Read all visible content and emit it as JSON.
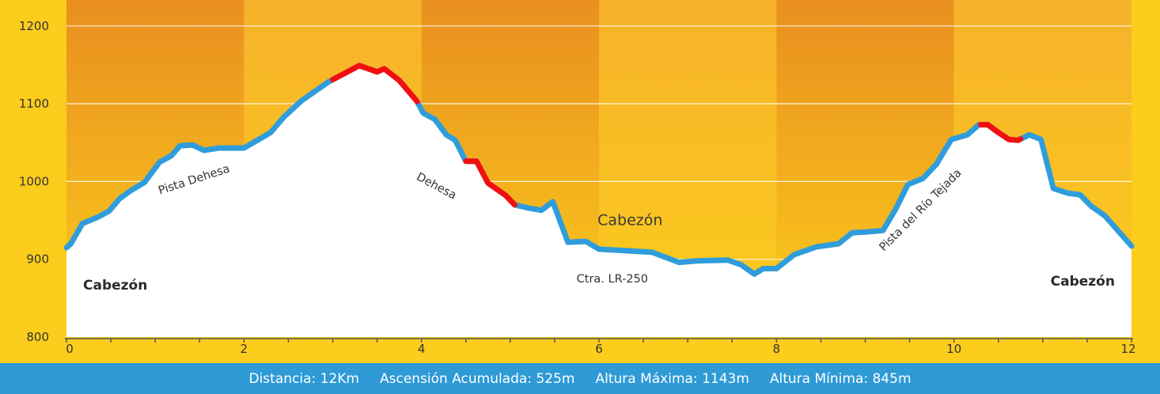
{
  "chart_data": {
    "type": "area",
    "xlim": [
      0,
      12
    ],
    "ylim": [
      800,
      1230
    ],
    "x_ticks": [
      "0",
      "2",
      "4",
      "6",
      "8",
      "10",
      "12"
    ],
    "y_ticks": [
      "800",
      "900",
      "1000",
      "1100",
      "1200"
    ],
    "grid": true,
    "profile": {
      "x": [
        0,
        0.05,
        0.18,
        0.35,
        0.48,
        0.6,
        0.72,
        0.88,
        1.05,
        1.18,
        1.28,
        1.42,
        1.55,
        1.72,
        1.88,
        2.0,
        2.15,
        2.3,
        2.45,
        2.65,
        2.8,
        2.95,
        3.05,
        3.3,
        3.5,
        3.58,
        3.75,
        3.95,
        4.02,
        4.15,
        4.28,
        4.38,
        4.5,
        4.62,
        4.75,
        4.95,
        5.05,
        5.2,
        5.35,
        5.48,
        5.65,
        5.85,
        6.0,
        6.3,
        6.6,
        6.9,
        7.1,
        7.45,
        7.6,
        7.75,
        7.85,
        8.0,
        8.2,
        8.45,
        8.7,
        8.85,
        9.0,
        9.2,
        9.35,
        9.48,
        9.65,
        9.8,
        9.97,
        10.15,
        10.28,
        10.38,
        10.5,
        10.62,
        10.72,
        10.85,
        10.98,
        11.12,
        11.28,
        11.42,
        11.55,
        11.7,
        12.0
      ],
      "y": [
        915,
        920,
        946,
        954,
        962,
        978,
        988,
        999,
        1025,
        1033,
        1046,
        1047,
        1040,
        1043,
        1043,
        1043,
        1053,
        1063,
        1083,
        1104,
        1116,
        1128,
        1134,
        1149,
        1141,
        1145,
        1130,
        1103,
        1088,
        1080,
        1060,
        1053,
        1026,
        1026,
        998,
        982,
        970,
        966,
        963,
        974,
        922,
        923,
        913,
        911,
        909,
        896,
        898,
        899,
        893,
        881,
        888,
        888,
        906,
        916,
        920,
        934,
        935,
        937,
        966,
        996,
        1004,
        1022,
        1054,
        1060,
        1073,
        1073,
        1063,
        1054,
        1053,
        1060,
        1054,
        991,
        985,
        983,
        968,
        956,
        917
      ]
    },
    "steep_segments": [
      [
        3.0,
        3.95
      ],
      [
        4.5,
        5.05
      ],
      [
        10.3,
        10.75
      ]
    ],
    "path_labels": [
      {
        "text": "Pista Dehesa",
        "x": 1.45,
        "y": 998,
        "rotate": -18
      },
      {
        "text": "Dehesa",
        "x": 4.15,
        "y": 990,
        "rotate": 28
      },
      {
        "text": "Pista del Río Tejada",
        "x": 9.65,
        "y": 960,
        "rotate": -45
      },
      {
        "text": "Ctra. LR-250",
        "x": 6.15,
        "y": 870,
        "rotate": 0
      }
    ],
    "place_labels": [
      {
        "text": "Cabezón",
        "x": 0.55,
        "y": 861
      },
      {
        "text": "Cabezón",
        "x": 6.35,
        "y": 944
      },
      {
        "text": "Cabezón",
        "x": 11.45,
        "y": 866
      }
    ],
    "colors": {
      "band_dark": "#e98f1f",
      "band_light": "#f6b22b",
      "band_bottom": "#fccd1c",
      "profile_line": "#2f9ddb",
      "steep_line": "#f20f0f",
      "fill": "#ffffff"
    }
  },
  "footer": {
    "distance": "Distancia: 12Km",
    "ascent": "Ascensión Acumulada: 525m",
    "max_altitude": "Altura Máxima: 1143m",
    "min_altitude": "Altura Mínima: 845m"
  }
}
